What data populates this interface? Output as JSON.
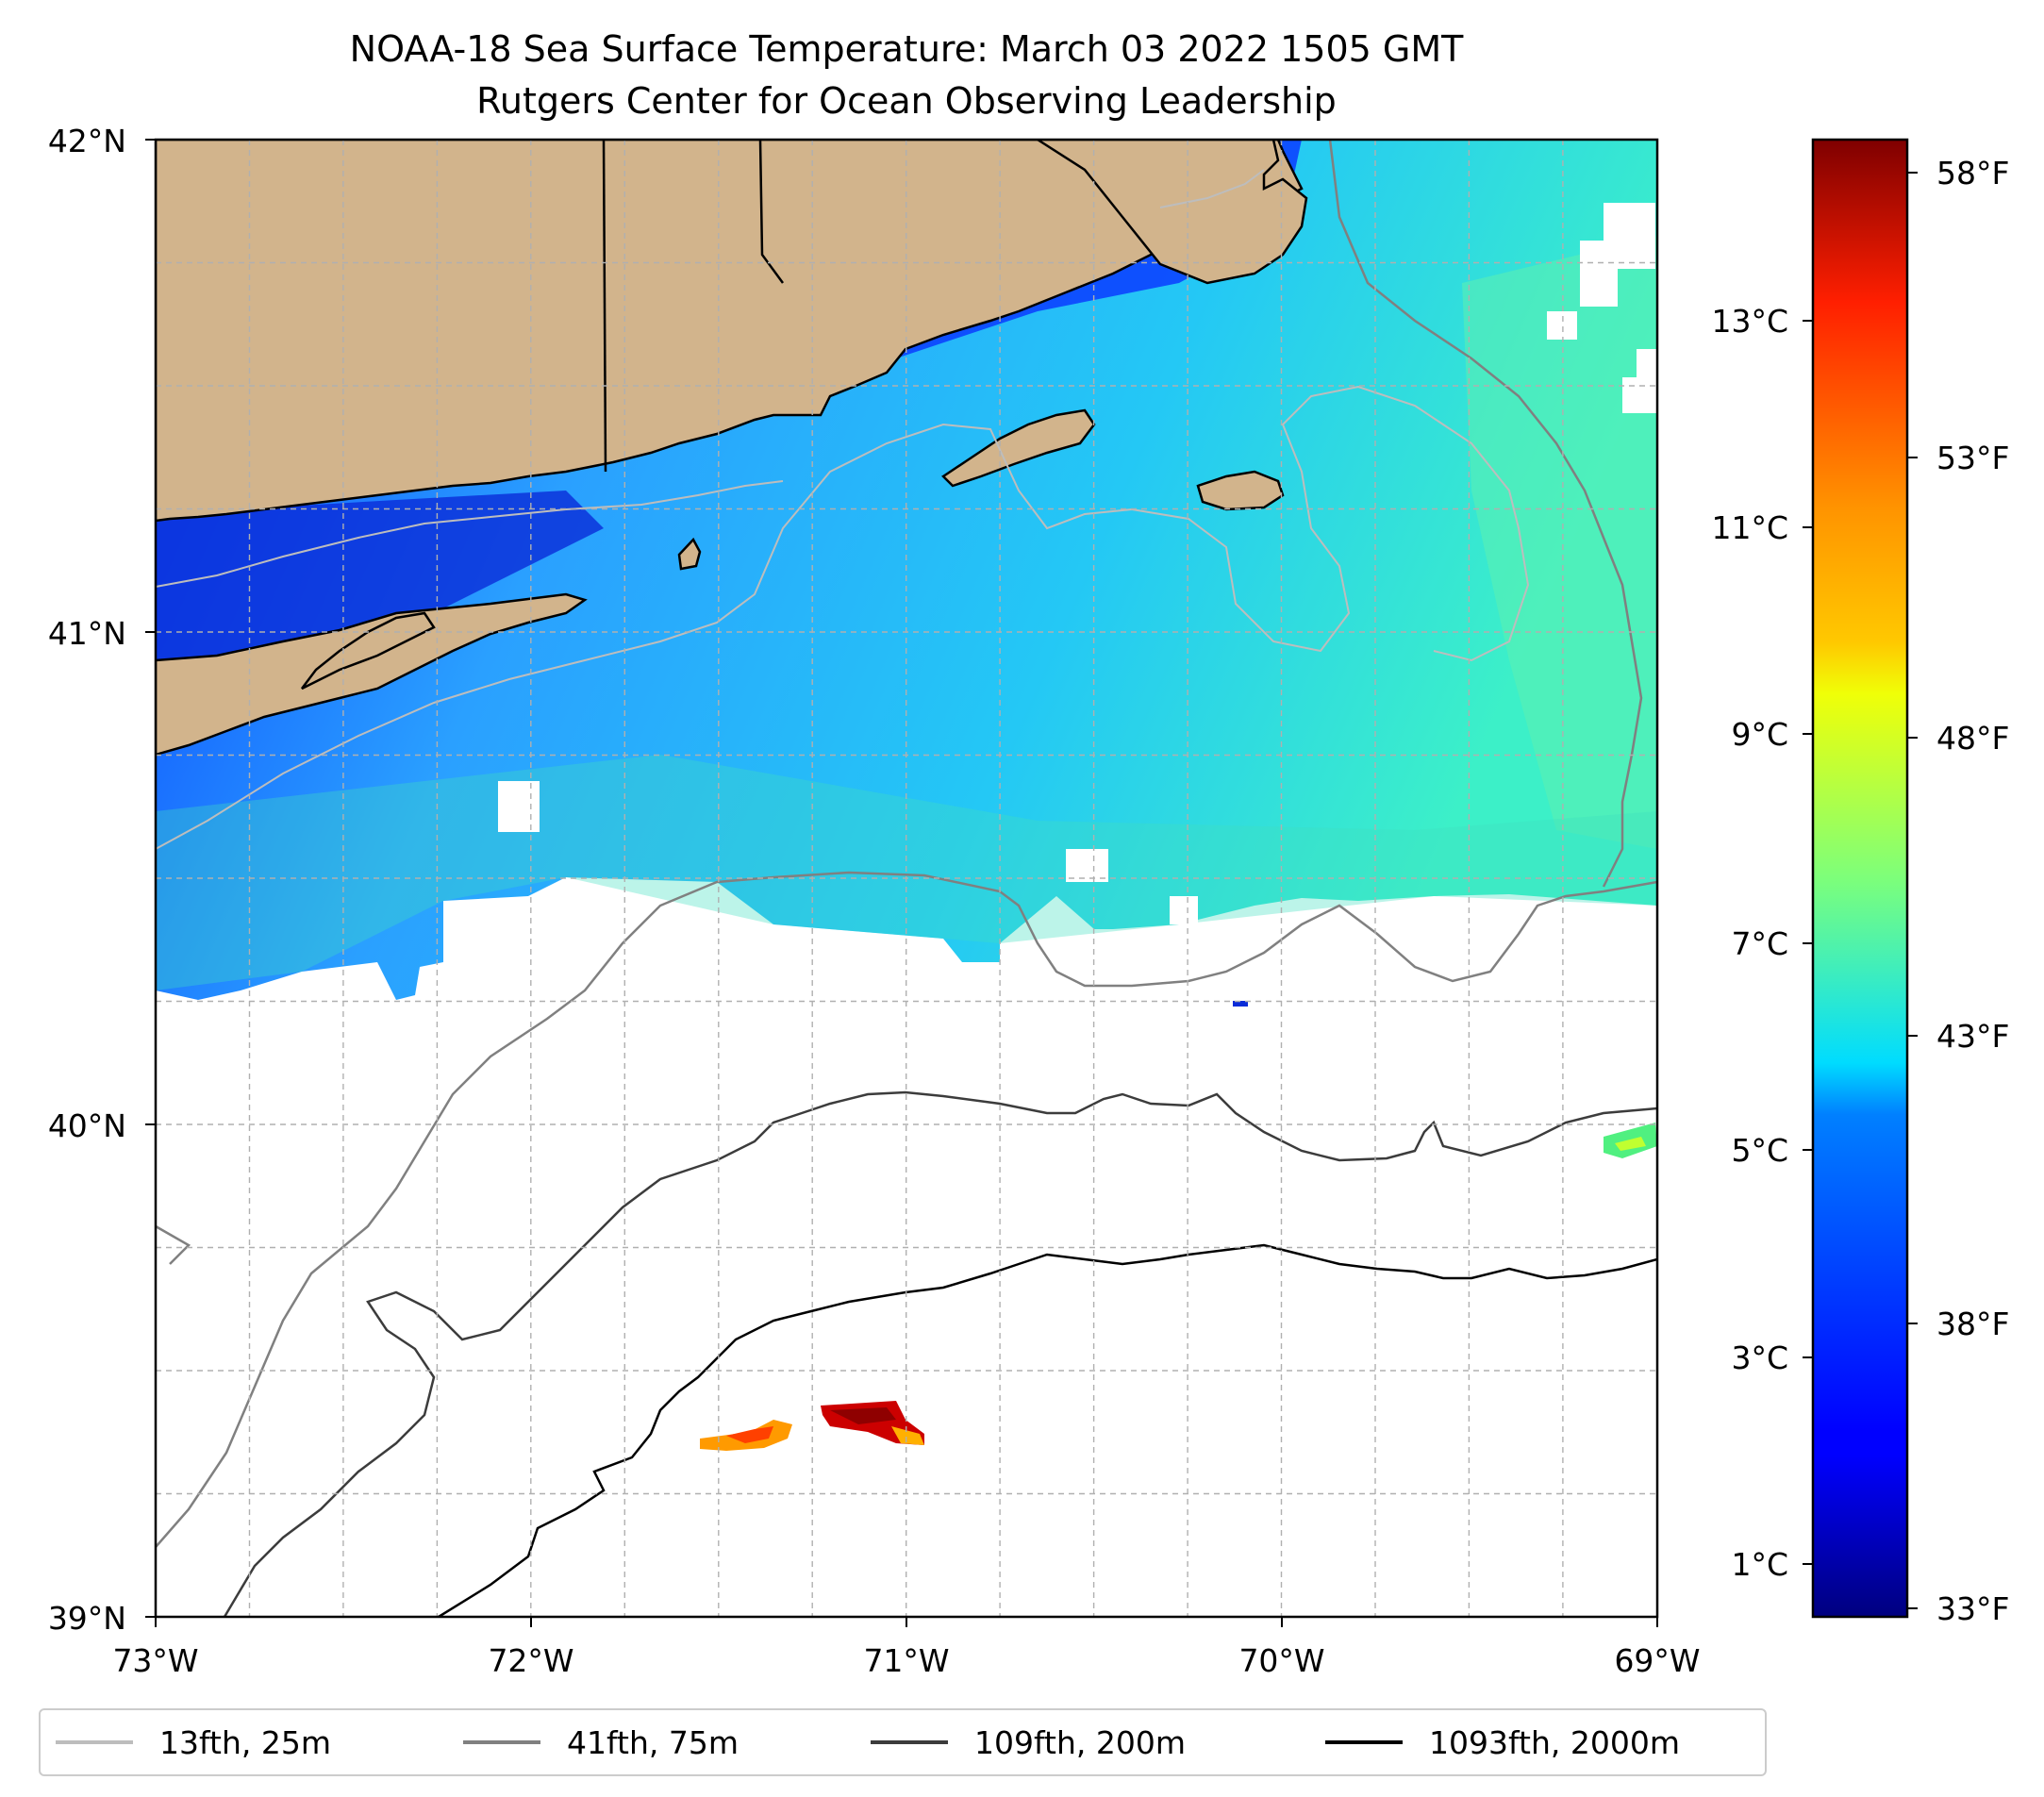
{
  "title": {
    "line1": "NOAA-18 Sea Surface Temperature: March 03 2022 1505 GMT",
    "line2": "Rutgers Center for Ocean Observing Leadership"
  },
  "map": {
    "lat_range": [
      39,
      42
    ],
    "lon_range": [
      -73,
      -69
    ],
    "lat_ticks": [
      "39°N",
      "40°N",
      "41°N",
      "42°N"
    ],
    "lon_ticks": [
      "73°W",
      "72°W",
      "71°W",
      "70°W",
      "69°W"
    ],
    "colors": {
      "land": "#d2b48c",
      "coastline": "#000000",
      "nodata": "#ffffff",
      "grid": "#b0b0b0"
    }
  },
  "colorbar": {
    "colormap": "jet",
    "range_c": [
      0.4,
      14.7
    ],
    "celsius_ticks": [
      "1°C",
      "3°C",
      "5°C",
      "7°C",
      "9°C",
      "11°C",
      "13°C"
    ],
    "fahrenheit_ticks": [
      "33°F",
      "38°F",
      "43°F",
      "48°F",
      "53°F",
      "58°F"
    ]
  },
  "legend": {
    "entries": [
      {
        "label": "13fth, 25m",
        "color": "#bdbdbd"
      },
      {
        "label": "41fth, 75m",
        "color": "#808080"
      },
      {
        "label": "109fth, 200m",
        "color": "#3c3c3c"
      },
      {
        "label": "1093fth, 2000m",
        "color": "#000000"
      }
    ]
  }
}
